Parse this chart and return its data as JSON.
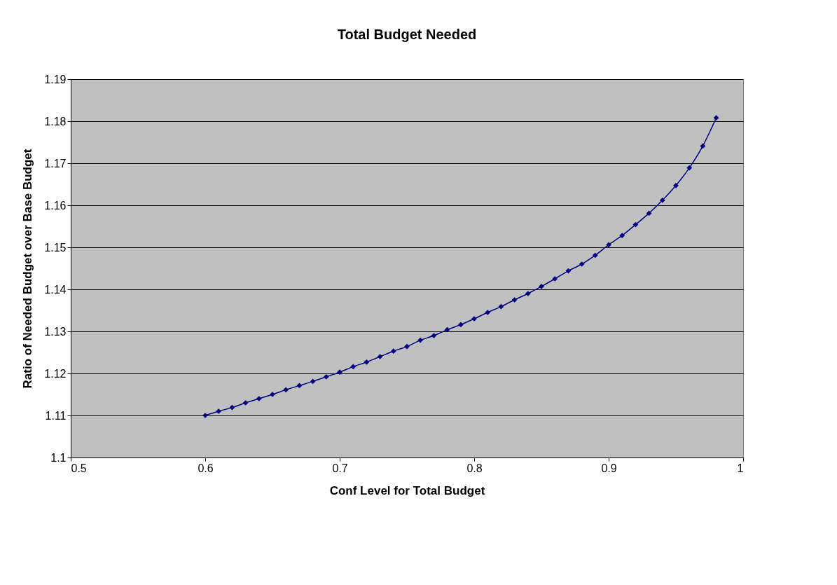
{
  "chart_data": {
    "type": "line",
    "title": "Total Budget Needed",
    "xlabel": "Conf Level for Total Budget",
    "ylabel": "Ratio of Needed Budget over Base Budget",
    "x": [
      0.6,
      0.61,
      0.62,
      0.63,
      0.64,
      0.65,
      0.66,
      0.67,
      0.68,
      0.69,
      0.7,
      0.71,
      0.72,
      0.73,
      0.74,
      0.75,
      0.76,
      0.77,
      0.78,
      0.79,
      0.8,
      0.81,
      0.82,
      0.83,
      0.84,
      0.85,
      0.86,
      0.87,
      0.88,
      0.89,
      0.9,
      0.91,
      0.92,
      0.93,
      0.94,
      0.95,
      0.96,
      0.97,
      0.98
    ],
    "series": [
      {
        "color": "#000080",
        "values": [
          1.11,
          1.111,
          1.1119,
          1.113,
          1.114,
          1.115,
          1.1161,
          1.1171,
          1.1181,
          1.1192,
          1.1203,
          1.1216,
          1.1227,
          1.124,
          1.1253,
          1.1264,
          1.1279,
          1.129,
          1.1304,
          1.1316,
          1.133,
          1.1345,
          1.1359,
          1.1375,
          1.139,
          1.1407,
          1.1425,
          1.1444,
          1.146,
          1.1481,
          1.1506,
          1.1528,
          1.1554,
          1.1581,
          1.1612,
          1.1647,
          1.1689,
          1.1741,
          1.1808
        ]
      }
    ],
    "xlim": [
      0.5,
      1
    ],
    "xticks": [
      0.5,
      0.6,
      0.7,
      0.8,
      0.9,
      {
        "value": 1,
        "label": "1"
      }
    ],
    "ylim": [
      1.1,
      1.19
    ],
    "yticks": [
      {
        "value": 1.1,
        "label": "1.1"
      },
      1.11,
      1.12,
      1.13,
      1.14,
      1.15,
      1.16,
      1.17,
      1.18,
      1.19
    ],
    "grid": "y",
    "marker": "diamond",
    "line_style": "solid"
  }
}
